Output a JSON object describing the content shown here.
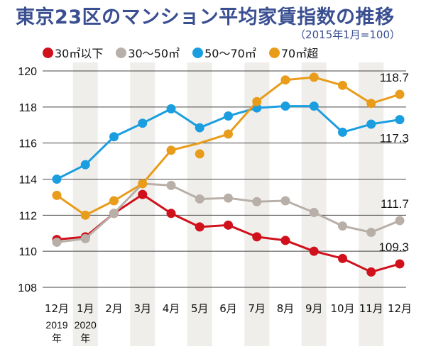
{
  "chart_data": {
    "type": "line",
    "title": "東京23区のマンション平均家賃指数の推移",
    "subtitle": "（2015年1月=100）",
    "xlabel": "",
    "ylabel": "",
    "ylim": [
      108,
      120
    ],
    "yticks": [
      108,
      110,
      112,
      114,
      116,
      118,
      120
    ],
    "grid": true,
    "legend_position": "top",
    "categories": [
      "12月",
      "1月",
      "2月",
      "3月",
      "4月",
      "5月",
      "6月",
      "7月",
      "8月",
      "9月",
      "10月",
      "11月",
      "12月"
    ],
    "year_labels": [
      {
        "index": 0,
        "line1": "2019",
        "line2": "年"
      },
      {
        "index": 1,
        "line1": "2020",
        "line2": "年"
      }
    ],
    "series": [
      {
        "name": "30㎡以下",
        "color": "#d0101b",
        "values": [
          110.65,
          110.8,
          112.1,
          113.15,
          112.1,
          111.35,
          111.45,
          110.8,
          110.6,
          110.0,
          109.6,
          108.85,
          109.3
        ],
        "end_label": "109.3"
      },
      {
        "name": "30〜50㎡",
        "color": "#b8b0a8",
        "values": [
          110.5,
          110.7,
          112.1,
          113.75,
          113.65,
          112.9,
          112.95,
          112.75,
          112.8,
          112.15,
          111.4,
          111.05,
          111.7
        ],
        "end_label": "111.7"
      },
      {
        "name": "50〜70㎡",
        "color": "#1a9ee0",
        "values": [
          114.0,
          114.8,
          116.35,
          117.1,
          117.9,
          116.85,
          117.5,
          117.95,
          118.05,
          118.05,
          116.6,
          117.05,
          117.3
        ],
        "end_label": "117.3"
      },
      {
        "name": "70㎡超",
        "color": "#e89c1a",
        "values": [
          113.1,
          112.0,
          112.8,
          113.75,
          115.6,
          116.0,
          116.5,
          118.3,
          119.5,
          119.65,
          119.2,
          118.2,
          118.7
        ],
        "end_label": "118.7",
        "marker_hidden_index": 5,
        "stray_point": {
          "index": 5,
          "value": 115.4
        }
      }
    ]
  }
}
